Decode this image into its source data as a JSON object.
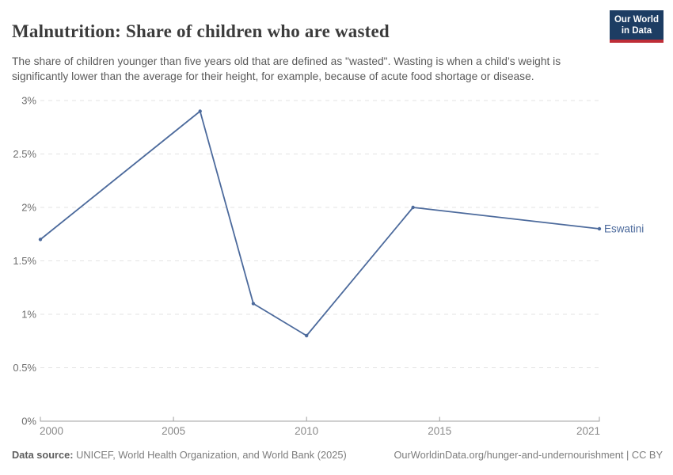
{
  "header": {
    "title": "Malnutrition: Share of children who are wasted",
    "subtitle": "The share of children younger than five years old that are defined as \"wasted\". Wasting is when a child’s weight is significantly lower than the average for their height, for example, because of acute food shortage or disease."
  },
  "logo": {
    "line1": "Our World",
    "line2": "in Data",
    "background_color": "#1d3d63",
    "bar_color": "#be2d37"
  },
  "chart_data": {
    "type": "line",
    "title": "Malnutrition: Share of children who are wasted",
    "xlabel": "",
    "ylabel": "",
    "xlim": [
      2000,
      2021
    ],
    "ylim": [
      0,
      3
    ],
    "grid": true,
    "legend_position": "end-of-line",
    "line_color": "#4c6a9c",
    "series": [
      {
        "name": "Eswatini",
        "points": [
          [
            2000,
            1.7
          ],
          [
            2006,
            2.9
          ],
          [
            2008,
            1.1
          ],
          [
            2010,
            0.8
          ],
          [
            2014,
            2.0
          ],
          [
            2021,
            1.8
          ]
        ]
      }
    ],
    "x_ticks": [
      {
        "value": 2000,
        "label": "2000"
      },
      {
        "value": 2005,
        "label": "2005"
      },
      {
        "value": 2010,
        "label": "2010"
      },
      {
        "value": 2015,
        "label": "2015"
      },
      {
        "value": 2021,
        "label": "2021"
      }
    ],
    "y_ticks": [
      {
        "value": 0,
        "label": "0%"
      },
      {
        "value": 0.5,
        "label": "0.5%"
      },
      {
        "value": 1,
        "label": "1%"
      },
      {
        "value": 1.5,
        "label": "1.5%"
      },
      {
        "value": 2,
        "label": "2%"
      },
      {
        "value": 2.5,
        "label": "2.5%"
      },
      {
        "value": 3,
        "label": "3%"
      }
    ]
  },
  "footer": {
    "source_label": "Data source:",
    "source_text": "UNICEF, World Health Organization, and World Bank (2025)",
    "license_text": "OurWorldinData.org/hunger-and-undernourishment | CC BY"
  }
}
